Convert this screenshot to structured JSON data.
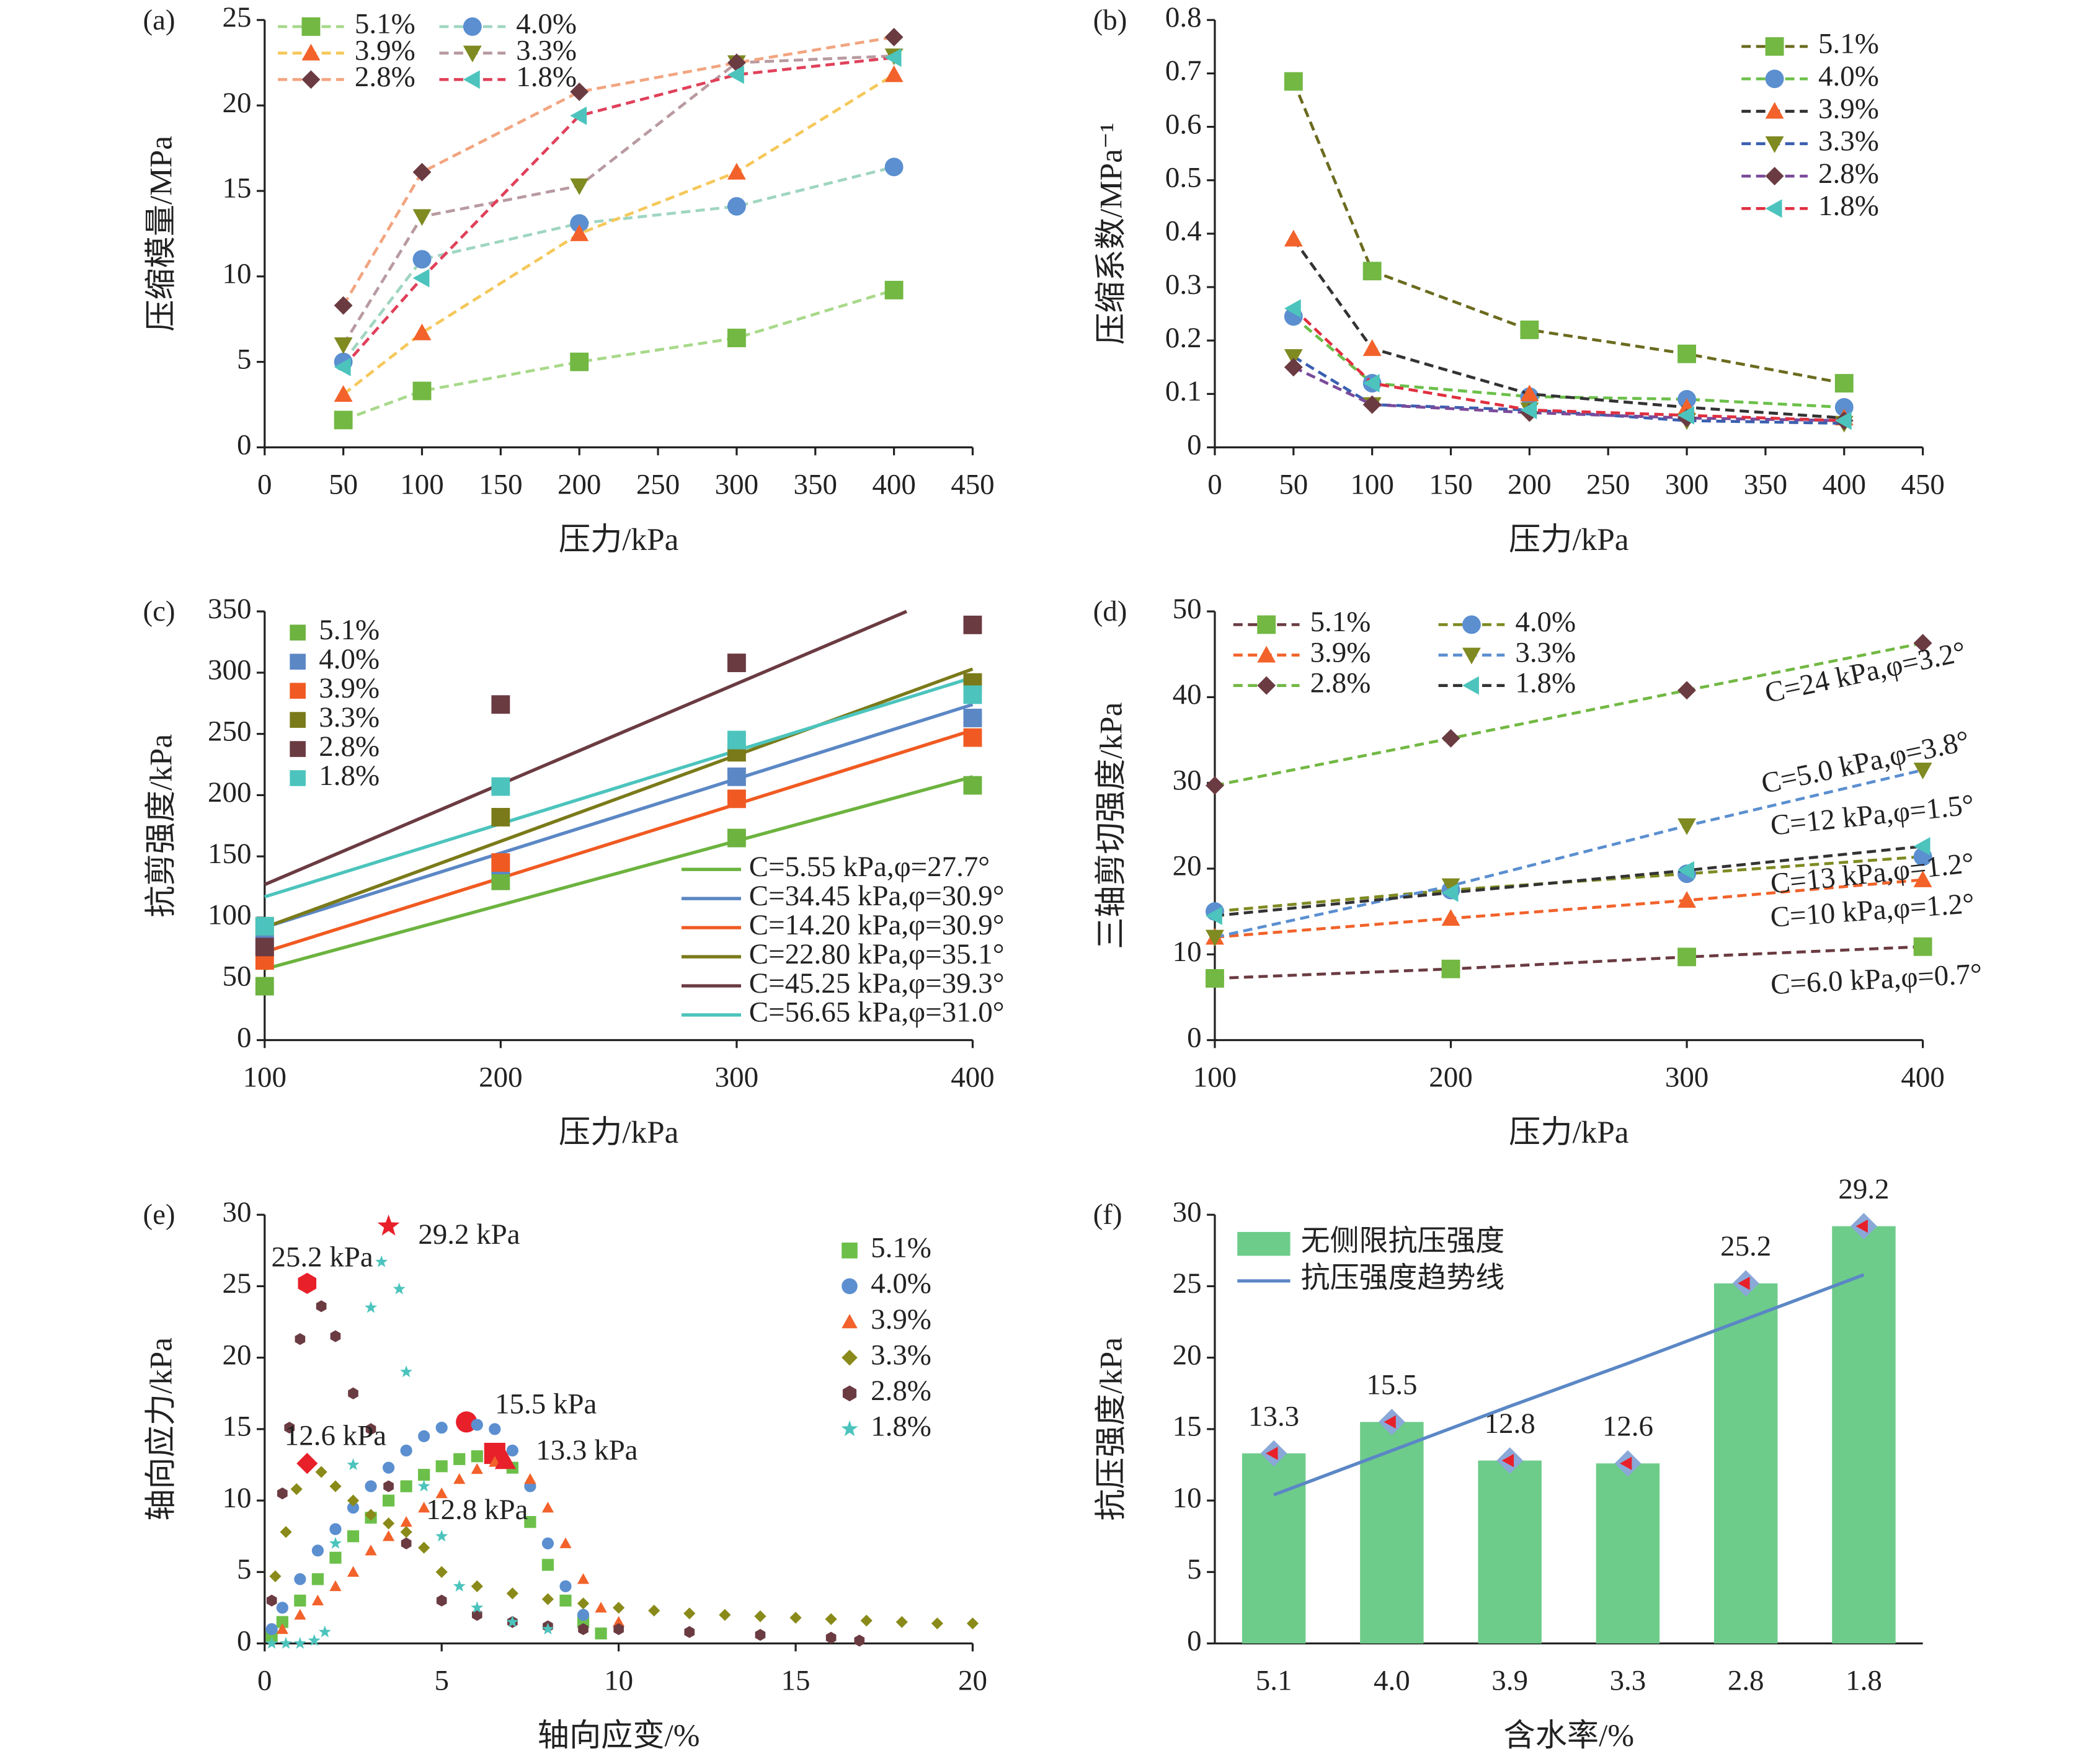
{
  "chart_data": [
    {
      "type": "line",
      "label": "(a)",
      "x_label": "压力/kPa",
      "y_label": "压缩模量/MPa",
      "x": [
        50,
        100,
        200,
        300,
        400
      ],
      "xlim": [
        0,
        450
      ],
      "xticks": [
        0,
        50,
        100,
        150,
        200,
        250,
        300,
        350,
        400,
        450
      ],
      "ylim": [
        0,
        25
      ],
      "yticks": [
        0,
        5,
        10,
        15,
        20,
        25
      ],
      "series": [
        {
          "name": "5.1%",
          "color": "#72b843",
          "line_color": "#a8d98a",
          "marker": "square",
          "values": [
            1.6,
            3.3,
            5.0,
            6.4,
            9.2
          ]
        },
        {
          "name": "4.0%",
          "color": "#5b8fd0",
          "line_color": "#9fd6c0",
          "marker": "circle",
          "values": [
            5.0,
            11.0,
            13.1,
            14.1,
            16.4
          ]
        },
        {
          "name": "3.9%",
          "color": "#f2622a",
          "line_color": "#f5c85a",
          "marker": "triangle",
          "values": [
            3.1,
            6.7,
            12.5,
            16.1,
            21.8
          ]
        },
        {
          "name": "3.3%",
          "color": "#7f8a21",
          "line_color": "#b89aa0",
          "marker": "triangle-down",
          "values": [
            6.0,
            13.5,
            15.3,
            22.5,
            22.9
          ]
        },
        {
          "name": "2.8%",
          "color": "#6b3b42",
          "line_color": "#f2a580",
          "marker": "diamond",
          "values": [
            8.3,
            16.1,
            20.8,
            22.5,
            24.0
          ]
        },
        {
          "name": "1.8%",
          "color": "#4cc4bd",
          "line_color": "#e0405a",
          "marker": "triangle-left",
          "values": [
            4.7,
            9.9,
            19.4,
            21.8,
            22.8
          ]
        }
      ]
    },
    {
      "type": "line",
      "label": "(b)",
      "x_label": "压力/kPa",
      "y_label": "压缩系数/MPa⁻¹",
      "x": [
        50,
        100,
        200,
        300,
        400
      ],
      "xlim": [
        0,
        450
      ],
      "xticks": [
        0,
        50,
        100,
        150,
        200,
        250,
        300,
        350,
        400,
        450
      ],
      "ylim": [
        0,
        0.8
      ],
      "yticks": [
        0,
        0.1,
        0.2,
        0.3,
        0.4,
        0.5,
        0.6,
        0.7,
        0.8
      ],
      "series": [
        {
          "name": "5.1%",
          "color": "#72b843",
          "line_color": "#6b6b1f",
          "marker": "square",
          "values": [
            0.685,
            0.33,
            0.22,
            0.175,
            0.12
          ]
        },
        {
          "name": "4.0%",
          "color": "#5b8fd0",
          "line_color": "#6cc04a",
          "marker": "circle",
          "values": [
            0.245,
            0.12,
            0.095,
            0.09,
            0.075
          ]
        },
        {
          "name": "3.9%",
          "color": "#f2622a",
          "line_color": "#333333",
          "marker": "triangle",
          "values": [
            0.39,
            0.185,
            0.1,
            0.075,
            0.055
          ]
        },
        {
          "name": "3.3%",
          "color": "#7f8a21",
          "line_color": "#3a5fb0",
          "marker": "triangle-down",
          "values": [
            0.17,
            0.08,
            0.07,
            0.05,
            0.045
          ]
        },
        {
          "name": "2.8%",
          "color": "#6b3b42",
          "line_color": "#7a4a9a",
          "marker": "diamond",
          "values": [
            0.15,
            0.08,
            0.065,
            0.055,
            0.05
          ]
        },
        {
          "name": "1.8%",
          "color": "#4cc4bd",
          "line_color": "#e03040",
          "marker": "triangle-left",
          "values": [
            0.26,
            0.12,
            0.07,
            0.06,
            0.05
          ]
        }
      ]
    },
    {
      "type": "scatter",
      "label": "(c)",
      "x_label": "压力/kPa",
      "y_label": "抗剪强度/kPa",
      "x": [
        100,
        200,
        300,
        400
      ],
      "xlim": [
        100,
        400
      ],
      "xticks": [
        100,
        200,
        300,
        400
      ],
      "ylim": [
        0,
        350
      ],
      "yticks": [
        0,
        50,
        100,
        150,
        200,
        250,
        300,
        350
      ],
      "series": [
        {
          "name": "5.1%",
          "color": "#6cb33f",
          "marker": "square",
          "values": [
            44,
            130,
            165,
            208
          ]
        },
        {
          "name": "4.0%",
          "color": "#5b87c5",
          "marker": "square",
          "values": [
            78,
            143,
            215,
            263
          ]
        },
        {
          "name": "3.9%",
          "color": "#f05a22",
          "marker": "square",
          "values": [
            65,
            145,
            197,
            247
          ]
        },
        {
          "name": "3.3%",
          "color": "#7a7a1a",
          "marker": "square",
          "values": [
            93,
            182,
            235,
            292
          ]
        },
        {
          "name": "2.8%",
          "color": "#6b3b42",
          "marker": "square",
          "values": [
            76,
            274,
            308,
            339
          ]
        },
        {
          "name": "1.8%",
          "color": "#4cc4bd",
          "marker": "square",
          "values": [
            93,
            207,
            245,
            282
          ]
        }
      ],
      "fits": [
        {
          "name": "C=5.55 kPa,φ=27.7°",
          "color": "#6cb33f",
          "x": [
            100,
            400
          ],
          "values": [
            58,
            215
          ]
        },
        {
          "name": "C=34.45 kPa,φ=30.9°",
          "color": "#5b87c5",
          "x": [
            100,
            400
          ],
          "values": [
            92,
            274
          ]
        },
        {
          "name": "C=14.20 kPa,φ=30.9°",
          "color": "#f05a22",
          "x": [
            100,
            400
          ],
          "values": [
            72,
            253
          ]
        },
        {
          "name": "C=22.80 kPa,φ=35.1°",
          "color": "#7a7a1a",
          "x": [
            100,
            400
          ],
          "values": [
            92,
            303
          ]
        },
        {
          "name": "C=45.25 kPa,φ=39.3°",
          "color": "#6b3b42",
          "x": [
            100,
            372
          ],
          "values": [
            127,
            350
          ]
        },
        {
          "name": "C=56.65 kPa,φ=31.0°",
          "color": "#4cc4bd",
          "x": [
            100,
            400
          ],
          "values": [
            117,
            296
          ]
        }
      ]
    },
    {
      "type": "line",
      "label": "(d)",
      "x_label": "压力/kPa",
      "y_label": "三轴剪切强度/kPa",
      "x": [
        100,
        200,
        300,
        400
      ],
      "xlim": [
        100,
        400
      ],
      "xticks": [
        100,
        200,
        300,
        400
      ],
      "ylim": [
        0,
        50
      ],
      "yticks": [
        0,
        10,
        20,
        30,
        40,
        50
      ],
      "series": [
        {
          "name": "5.1%",
          "color": "#72b843",
          "line_color": "#6b3b42",
          "marker": "square",
          "values": [
            7.2,
            8.3,
            9.7,
            10.9
          ]
        },
        {
          "name": "4.0%",
          "color": "#5b8fd0",
          "line_color": "#7f8a21",
          "marker": "circle",
          "values": [
            15,
            17.5,
            19.4,
            21.4
          ]
        },
        {
          "name": "3.9%",
          "color": "#f2622a",
          "line_color": "#f2622a",
          "marker": "triangle",
          "values": [
            12,
            14.2,
            16.3,
            18.7
          ]
        },
        {
          "name": "3.3%",
          "color": "#7f8a21",
          "line_color": "#5b8fd0",
          "marker": "triangle-down",
          "values": [
            12,
            18,
            25,
            31.5
          ]
        },
        {
          "name": "2.8%",
          "color": "#6b3b42",
          "line_color": "#72b843",
          "marker": "diamond",
          "values": [
            29.7,
            35.2,
            40.8,
            46.3
          ]
        },
        {
          "name": "1.8%",
          "color": "#4cc4bd",
          "line_color": "#333333",
          "marker": "triangle-left",
          "values": [
            14.5,
            17.2,
            19.8,
            22.6
          ]
        }
      ],
      "annotations": [
        {
          "text": "C=24 kPa,φ=3.2°",
          "color": "#6b3b42"
        },
        {
          "text": "C=5.0 kPa,φ=3.8°",
          "color": "#7f8a21"
        },
        {
          "text": "C=12 kPa,φ=1.5°",
          "color": "#4cc4bd"
        },
        {
          "text": "C=13 kPa,φ=1.2°",
          "color": "#5b8fd0"
        },
        {
          "text": "C=10 kPa,φ=1.2°",
          "color": "#f2622a"
        },
        {
          "text": "C=6.0 kPa,φ=0.7°",
          "color": "#72b843"
        }
      ]
    },
    {
      "type": "scatter",
      "label": "(e)",
      "x_label": "轴向应变/%",
      "y_label": "轴向应力/kPa",
      "xlim": [
        0,
        20
      ],
      "xticks": [
        0,
        5,
        10,
        15,
        20
      ],
      "ylim": [
        0,
        30
      ],
      "yticks": [
        0,
        5,
        10,
        15,
        20,
        25,
        30
      ],
      "peak_color": "#e8202a",
      "series": [
        {
          "name": "5.1%",
          "color": "#6cc04a",
          "marker": "square",
          "x": [
            0.2,
            0.5,
            1,
            1.5,
            2,
            2.5,
            3,
            3.5,
            4,
            4.5,
            5,
            5.5,
            6,
            6.5,
            7,
            7.5,
            8,
            8.5,
            9,
            9.5
          ],
          "values": [
            0.5,
            1.5,
            3,
            4.5,
            6,
            7.5,
            8.8,
            10,
            11,
            11.8,
            12.4,
            12.9,
            13.1,
            13.3,
            12.3,
            8.5,
            5.5,
            3,
            1.5,
            0.7
          ]
        },
        {
          "name": "4.0%",
          "color": "#5b8fd0",
          "marker": "circle",
          "x": [
            0.2,
            0.5,
            1,
            1.5,
            2,
            2.5,
            3,
            3.5,
            4,
            4.5,
            5,
            5.7,
            6,
            6.5,
            7,
            7.5,
            8,
            8.5,
            9
          ],
          "values": [
            1,
            2.5,
            4.5,
            6.5,
            8,
            9.5,
            11,
            12.3,
            13.5,
            14.5,
            15.1,
            15.5,
            15.3,
            15,
            13.5,
            11,
            7,
            4,
            2
          ]
        },
        {
          "name": "3.9%",
          "color": "#f2622a",
          "marker": "triangle",
          "x": [
            0.5,
            1,
            1.5,
            2,
            2.5,
            3,
            3.5,
            4,
            4.5,
            5,
            5.5,
            6,
            6.5,
            6.8,
            7.5,
            8,
            8.5,
            9,
            9.5,
            10
          ],
          "values": [
            1,
            2,
            3,
            4,
            5,
            6.5,
            7.5,
            8.5,
            9.5,
            10.5,
            11.5,
            12.2,
            12.7,
            12.8,
            11.5,
            9.5,
            7,
            4.5,
            2.5,
            1.5
          ]
        },
        {
          "name": "3.3%",
          "color": "#8a8a1a",
          "marker": "diamond",
          "x": [
            0.3,
            0.6,
            0.9,
            1.2,
            1.6,
            2,
            2.5,
            3,
            3.5,
            4,
            4.5,
            5,
            6,
            7,
            8,
            9,
            10,
            11,
            12,
            13,
            14,
            15,
            16,
            17,
            18,
            19,
            20
          ],
          "values": [
            4.7,
            7.8,
            10.8,
            12.6,
            12,
            11,
            10,
            9,
            8.4,
            7.8,
            6.7,
            5,
            4,
            3.5,
            3.1,
            2.8,
            2.5,
            2.3,
            2.1,
            2,
            1.9,
            1.8,
            1.7,
            1.6,
            1.5,
            1.4,
            1.4
          ]
        },
        {
          "name": "2.8%",
          "color": "#6b3b42",
          "marker": "hexagon",
          "x": [
            0.2,
            0.5,
            0.7,
            1,
            1.2,
            1.6,
            2,
            2.5,
            3,
            3.5,
            4,
            5,
            6,
            7,
            8,
            9,
            10,
            12,
            14,
            16,
            16.8
          ],
          "values": [
            3,
            10.5,
            15.1,
            21.3,
            25.2,
            23.6,
            21.5,
            17.5,
            15,
            11,
            7,
            3,
            2,
            1.5,
            1.2,
            1,
            1,
            0.8,
            0.6,
            0.4,
            0.2
          ]
        },
        {
          "name": "1.8%",
          "color": "#4cc4bd",
          "marker": "star",
          "x": [
            0.2,
            0.6,
            1,
            1.4,
            1.7,
            2,
            2.5,
            3,
            3.3,
            3.5,
            3.8,
            4,
            4.5,
            5,
            5.5,
            6,
            7,
            8
          ],
          "values": [
            0,
            0,
            0,
            0.2,
            0.8,
            7,
            12.5,
            23.5,
            26.7,
            29.2,
            24.8,
            19,
            11,
            7.5,
            4,
            2.5,
            1.5,
            1
          ]
        }
      ],
      "annotations": [
        {
          "text": "29.2 kPa",
          "color": "#4cc4bd"
        },
        {
          "text": "25.2 kPa",
          "color": "#6b3b42"
        },
        {
          "text": "15.5 kPa",
          "color": "#5b8fd0"
        },
        {
          "text": "13.3 kPa",
          "color": "#6cc04a"
        },
        {
          "text": "12.8 kPa",
          "color": "#f2622a"
        },
        {
          "text": "12.6 kPa",
          "color": "#8a8a1a"
        }
      ]
    },
    {
      "type": "bar",
      "label": "(f)",
      "x_label": "含水率/%",
      "y_label": "抗压强度/kPa",
      "categories": [
        "5.1",
        "4.0",
        "3.9",
        "3.3",
        "2.8",
        "1.8"
      ],
      "ylim": [
        0,
        30
      ],
      "yticks": [
        0,
        5,
        10,
        15,
        20,
        25,
        30
      ],
      "marker_color": "#8aa8d8",
      "series": [
        {
          "name": "无侧限抗压强度",
          "color": "#6dcc8a",
          "values": [
            13.3,
            15.5,
            12.8,
            12.6,
            25.2,
            29.2
          ]
        }
      ],
      "trend": {
        "name": "抗压强度趋势线",
        "color": "#5b87c5",
        "values": [
          10.4,
          13.5,
          16.6,
          19.6,
          22.7,
          25.8
        ]
      }
    }
  ]
}
